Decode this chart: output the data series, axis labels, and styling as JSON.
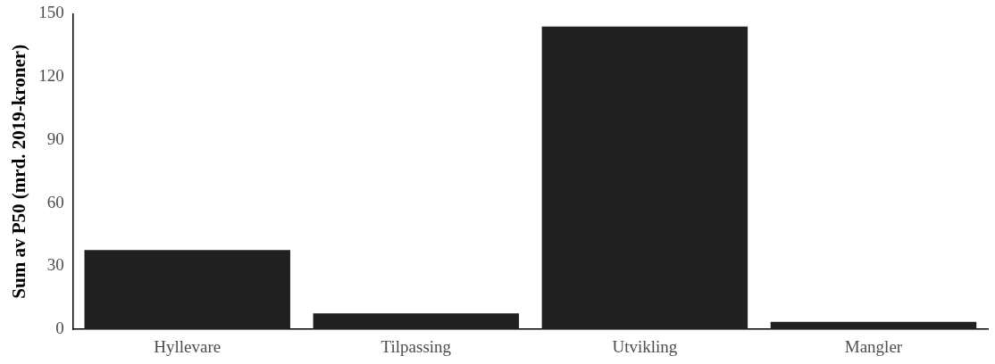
{
  "chart_data": {
    "type": "bar",
    "ylabel": "Sum av P50 (mrd. 2019-kroner)",
    "categories": [
      "Hyllevare",
      "Tilpassing",
      "Utvikling",
      "Mangler"
    ],
    "values": [
      37.7,
      7.6,
      143.9,
      3.6
    ],
    "color": "#212121",
    "ylim": [
      0,
      150
    ],
    "yticks": [
      0,
      30,
      60,
      90,
      120,
      150
    ],
    "grid": false,
    "legend": false
  }
}
